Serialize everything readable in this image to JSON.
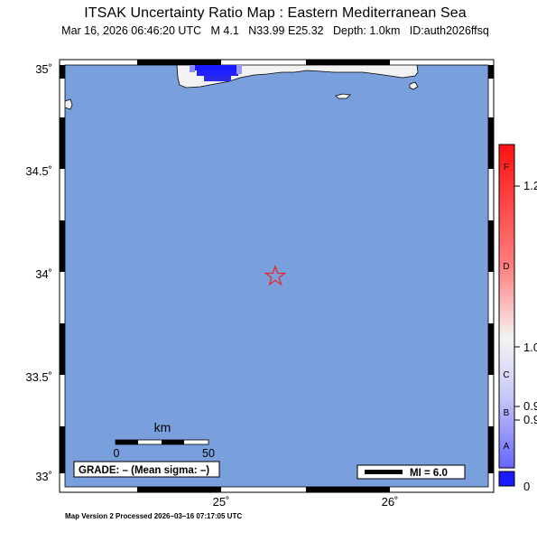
{
  "header": {
    "title": "ITSAK Uncertainty Ratio Map : Eastern Mediterranean Sea",
    "subtitle": "Mar 16, 2026 06:46:20 UTC   M 4.1   N33.99 E25.32   Depth: 1.0km   ID:auth2026ffsq"
  },
  "map": {
    "lat_labels": [
      "35˚",
      "34.5˚",
      "34˚",
      "33.5˚",
      "33˚"
    ],
    "lon_labels": [
      "25˚",
      "26˚"
    ],
    "sea_color": "#799fdd",
    "epicenter": {
      "lat": 33.99,
      "lon": 25.32,
      "marker": "star-icon",
      "color": "#e8262b"
    },
    "scale_bar": {
      "title": "km",
      "labels": [
        "0",
        "50"
      ]
    },
    "grade_text": "GRADE: – (Mean sigma: –)",
    "legend_text": "MI = 6.0"
  },
  "colorbar": {
    "letters": [
      "F",
      "D",
      "C",
      "B",
      "A"
    ],
    "values": [
      "1.2",
      "1.0",
      "0.9",
      "0.9",
      "0"
    ],
    "colors": {
      "top": "#ff1a1a",
      "mid": "#f4f4f4",
      "bottom": "#1a1aff"
    }
  },
  "footer": {
    "text": "Map Version 2 Processed 2026–03–16 07:17:05 UTC"
  }
}
